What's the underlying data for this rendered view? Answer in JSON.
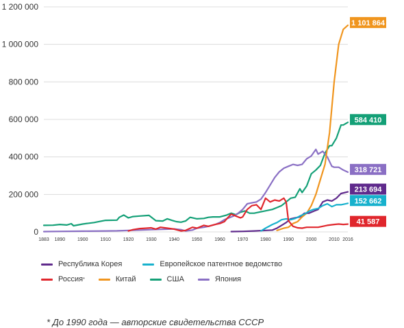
{
  "chart_data": {
    "type": "line",
    "title": "",
    "xlabel": "",
    "ylabel": "",
    "xlim": [
      1883,
      2016
    ],
    "ylim": [
      0,
      1200000
    ],
    "grid": "horizontal",
    "legend_position": "bottom",
    "y_ticks": [
      {
        "value": 0,
        "label": "0"
      },
      {
        "value": 200000,
        "label": "200 000"
      },
      {
        "value": 400000,
        "label": "400 000"
      },
      {
        "value": 600000,
        "label": "600 000"
      },
      {
        "value": 800000,
        "label": "800 000"
      },
      {
        "value": 1000000,
        "label": "1 000 000"
      },
      {
        "value": 1200000,
        "label": "1 200 000"
      }
    ],
    "x_ticks": [
      {
        "value": 1883,
        "label": "1883"
      },
      {
        "value": 1890,
        "label": "1890"
      },
      {
        "value": 1900,
        "label": "1900"
      },
      {
        "value": 1910,
        "label": "1910"
      },
      {
        "value": 1920,
        "label": "1920"
      },
      {
        "value": 1930,
        "label": "1930"
      },
      {
        "value": 1940,
        "label": "1940"
      },
      {
        "value": 1950,
        "label": "1950"
      },
      {
        "value": 1960,
        "label": "1960"
      },
      {
        "value": 1970,
        "label": "1970"
      },
      {
        "value": 1980,
        "label": "1980"
      },
      {
        "value": 1990,
        "label": "1990"
      },
      {
        "value": 2000,
        "label": "2000"
      },
      {
        "value": 2010,
        "label": "2010"
      },
      {
        "value": 2016,
        "label": "2016"
      }
    ],
    "series": [
      {
        "name": "США",
        "color": "#14a077",
        "end_label": "584 410",
        "end_value": 584410,
        "points": [
          [
            1883,
            35000
          ],
          [
            1887,
            36000
          ],
          [
            1890,
            40000
          ],
          [
            1893,
            37000
          ],
          [
            1895,
            44000
          ],
          [
            1896,
            33000
          ],
          [
            1900,
            42000
          ],
          [
            1905,
            50000
          ],
          [
            1910,
            62000
          ],
          [
            1915,
            63000
          ],
          [
            1916,
            78000
          ],
          [
            1918,
            90000
          ],
          [
            1920,
            75000
          ],
          [
            1922,
            82000
          ],
          [
            1925,
            85000
          ],
          [
            1929,
            88000
          ],
          [
            1932,
            60000
          ],
          [
            1935,
            58000
          ],
          [
            1937,
            70000
          ],
          [
            1939,
            62000
          ],
          [
            1941,
            55000
          ],
          [
            1943,
            52000
          ],
          [
            1945,
            58000
          ],
          [
            1947,
            78000
          ],
          [
            1950,
            70000
          ],
          [
            1953,
            72000
          ],
          [
            1955,
            78000
          ],
          [
            1957,
            80000
          ],
          [
            1960,
            80000
          ],
          [
            1963,
            90000
          ],
          [
            1965,
            100000
          ],
          [
            1967,
            92000
          ],
          [
            1969,
            105000
          ],
          [
            1971,
            112000
          ],
          [
            1973,
            100000
          ],
          [
            1975,
            100000
          ],
          [
            1977,
            105000
          ],
          [
            1979,
            110000
          ],
          [
            1981,
            115000
          ],
          [
            1983,
            120000
          ],
          [
            1985,
            130000
          ],
          [
            1987,
            140000
          ],
          [
            1989,
            160000
          ],
          [
            1991,
            180000
          ],
          [
            1993,
            185000
          ],
          [
            1995,
            230000
          ],
          [
            1996,
            210000
          ],
          [
            1998,
            245000
          ],
          [
            2000,
            310000
          ],
          [
            2002,
            330000
          ],
          [
            2004,
            355000
          ],
          [
            2006,
            420000
          ],
          [
            2008,
            460000
          ],
          [
            2009,
            460000
          ],
          [
            2011,
            500000
          ],
          [
            2013,
            570000
          ],
          [
            2014,
            570000
          ],
          [
            2016,
            584410
          ]
        ]
      },
      {
        "name": "Япония",
        "color": "#8a6fc4",
        "end_label": "318 721",
        "end_value": 318721,
        "points": [
          [
            1883,
            2000
          ],
          [
            1890,
            3000
          ],
          [
            1900,
            4000
          ],
          [
            1910,
            5000
          ],
          [
            1915,
            6000
          ],
          [
            1920,
            8000
          ],
          [
            1925,
            10000
          ],
          [
            1930,
            12000
          ],
          [
            1935,
            14000
          ],
          [
            1940,
            16000
          ],
          [
            1943,
            12000
          ],
          [
            1945,
            5000
          ],
          [
            1948,
            10000
          ],
          [
            1950,
            20000
          ],
          [
            1953,
            25000
          ],
          [
            1955,
            30000
          ],
          [
            1958,
            40000
          ],
          [
            1960,
            50000
          ],
          [
            1962,
            65000
          ],
          [
            1964,
            75000
          ],
          [
            1966,
            85000
          ],
          [
            1968,
            100000
          ],
          [
            1970,
            120000
          ],
          [
            1972,
            150000
          ],
          [
            1974,
            155000
          ],
          [
            1976,
            160000
          ],
          [
            1978,
            175000
          ],
          [
            1980,
            210000
          ],
          [
            1982,
            250000
          ],
          [
            1984,
            290000
          ],
          [
            1986,
            320000
          ],
          [
            1988,
            340000
          ],
          [
            1990,
            350000
          ],
          [
            1992,
            360000
          ],
          [
            1994,
            355000
          ],
          [
            1996,
            360000
          ],
          [
            1998,
            390000
          ],
          [
            2000,
            405000
          ],
          [
            2002,
            440000
          ],
          [
            2003,
            415000
          ],
          [
            2005,
            430000
          ],
          [
            2007,
            400000
          ],
          [
            2009,
            350000
          ],
          [
            2010,
            345000
          ],
          [
            2012,
            345000
          ],
          [
            2014,
            330000
          ],
          [
            2016,
            318721
          ]
        ]
      },
      {
        "name": "Китай",
        "color": "#f0951e",
        "end_label": "1 101 864",
        "end_value": 1101864,
        "points": [
          [
            1985,
            8000
          ],
          [
            1988,
            20000
          ],
          [
            1990,
            25000
          ],
          [
            1992,
            45000
          ],
          [
            1994,
            55000
          ],
          [
            1996,
            80000
          ],
          [
            1998,
            100000
          ],
          [
            2000,
            140000
          ],
          [
            2002,
            200000
          ],
          [
            2004,
            280000
          ],
          [
            2006,
            360000
          ],
          [
            2008,
            530000
          ],
          [
            2010,
            800000
          ],
          [
            2012,
            1000000
          ],
          [
            2014,
            1080000
          ],
          [
            2016,
            1101864
          ]
        ]
      },
      {
        "name": "Республика Корея",
        "color": "#5f2a8c",
        "end_label": "213 694",
        "end_value": 213694,
        "points": [
          [
            1965,
            2000
          ],
          [
            1970,
            3000
          ],
          [
            1975,
            5000
          ],
          [
            1980,
            8000
          ],
          [
            1983,
            10000
          ],
          [
            1985,
            20000
          ],
          [
            1987,
            35000
          ],
          [
            1989,
            50000
          ],
          [
            1991,
            70000
          ],
          [
            1993,
            75000
          ],
          [
            1995,
            80000
          ],
          [
            1997,
            100000
          ],
          [
            1999,
            100000
          ],
          [
            2001,
            110000
          ],
          [
            2003,
            120000
          ],
          [
            2005,
            160000
          ],
          [
            2007,
            170000
          ],
          [
            2009,
            165000
          ],
          [
            2011,
            180000
          ],
          [
            2013,
            205000
          ],
          [
            2016,
            213694
          ]
        ]
      },
      {
        "name": "Европейское патентное ведомство",
        "color": "#17b1cd",
        "end_label": "152 662",
        "end_value": 152662,
        "points": [
          [
            1978,
            5000
          ],
          [
            1980,
            20000
          ],
          [
            1983,
            40000
          ],
          [
            1985,
            50000
          ],
          [
            1987,
            65000
          ],
          [
            1989,
            70000
          ],
          [
            1991,
            65000
          ],
          [
            1993,
            72000
          ],
          [
            1995,
            85000
          ],
          [
            1997,
            95000
          ],
          [
            1999,
            110000
          ],
          [
            2001,
            120000
          ],
          [
            2003,
            125000
          ],
          [
            2005,
            140000
          ],
          [
            2007,
            150000
          ],
          [
            2009,
            135000
          ],
          [
            2011,
            145000
          ],
          [
            2013,
            145000
          ],
          [
            2016,
            152662
          ]
        ]
      },
      {
        "name": "Россия",
        "color": "#e0262c",
        "end_label": "41 587",
        "end_value": 41587,
        "points": [
          [
            1920,
            5000
          ],
          [
            1922,
            12000
          ],
          [
            1925,
            18000
          ],
          [
            1928,
            20000
          ],
          [
            1930,
            22000
          ],
          [
            1932,
            15000
          ],
          [
            1934,
            25000
          ],
          [
            1937,
            20000
          ],
          [
            1940,
            15000
          ],
          [
            1943,
            5000
          ],
          [
            1945,
            8000
          ],
          [
            1948,
            25000
          ],
          [
            1950,
            20000
          ],
          [
            1953,
            35000
          ],
          [
            1955,
            30000
          ],
          [
            1958,
            40000
          ],
          [
            1960,
            45000
          ],
          [
            1962,
            55000
          ],
          [
            1963,
            70000
          ],
          [
            1965,
            95000
          ],
          [
            1967,
            85000
          ],
          [
            1969,
            75000
          ],
          [
            1970,
            80000
          ],
          [
            1972,
            120000
          ],
          [
            1974,
            140000
          ],
          [
            1976,
            145000
          ],
          [
            1978,
            120000
          ],
          [
            1980,
            180000
          ],
          [
            1982,
            160000
          ],
          [
            1984,
            170000
          ],
          [
            1986,
            165000
          ],
          [
            1988,
            180000
          ],
          [
            1989,
            160000
          ],
          [
            1990,
            60000
          ],
          [
            1992,
            30000
          ],
          [
            1994,
            22000
          ],
          [
            1996,
            20000
          ],
          [
            1998,
            25000
          ],
          [
            2000,
            25000
          ],
          [
            2003,
            25000
          ],
          [
            2005,
            30000
          ],
          [
            2007,
            35000
          ],
          [
            2010,
            40000
          ],
          [
            2012,
            42000
          ],
          [
            2014,
            40000
          ],
          [
            2016,
            41587
          ]
        ]
      }
    ]
  },
  "legend": {
    "rows": [
      [
        {
          "label": "Республика Корея",
          "color": "#5f2a8c"
        },
        {
          "label": "Европейское патентное ведомство",
          "color": "#17b1cd"
        }
      ],
      [
        {
          "label": "Россия",
          "sup": "*",
          "color": "#e0262c"
        },
        {
          "label": "Китай",
          "color": "#f0951e"
        },
        {
          "label": "США",
          "color": "#14a077"
        },
        {
          "label": "Япония",
          "color": "#8a6fc4"
        }
      ]
    ]
  },
  "footnote": "* До 1990 года — авторские свидетельства СССР"
}
